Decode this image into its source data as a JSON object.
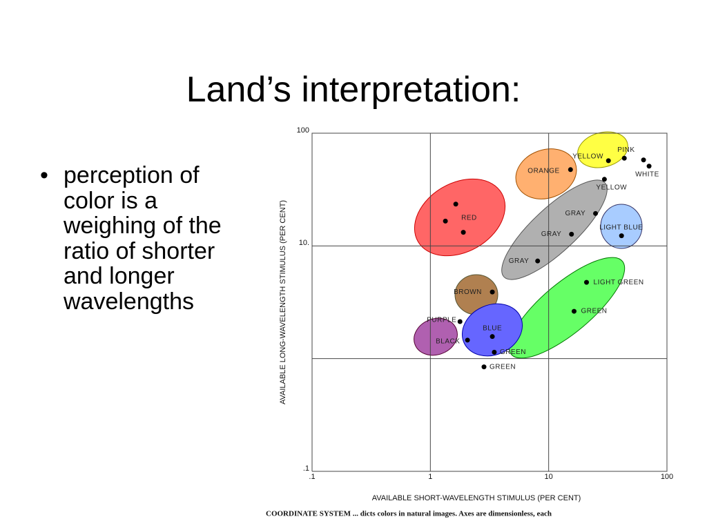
{
  "slide": {
    "title": "Land’s interpretation:",
    "bullets": [
      "perception of color is a weighing of the ratio of shorter and longer wavelengths"
    ]
  },
  "chart_data": {
    "type": "scatter",
    "xlabel": "AVAILABLE SHORT-WAVELENGTH STIMULUS (PER CENT)",
    "ylabel": "AVAILABLE LONG-WAVELENGTH STIMULUS (PER CENT)",
    "caption": "COORDINATE SYSTEM ... dicts colors in natural images. Axes are dimensionless, each",
    "log_x": true,
    "log_y": true,
    "grid": true,
    "color": "#000000",
    "xlim": [
      0.1,
      100
    ],
    "ylim": [
      0.1,
      100
    ],
    "xticks": [
      {
        "value": 0.1,
        "label": ".1"
      },
      1,
      10,
      100
    ],
    "yticks": [
      {
        "value": 0.1,
        "label": ".1"
      },
      {
        "value": 1,
        "label": null
      },
      {
        "value": 10,
        "label": "10."
      },
      100
    ],
    "x": [
      1.64,
      1.34,
      1.9,
      15.3,
      32,
      43.6,
      63.4,
      70.6,
      29.6,
      24.9,
      15.6,
      8.07,
      41.3,
      20.9,
      16.4,
      3.34,
      1.78,
      3.34,
      2.06,
      3.47,
      2.84
    ],
    "values": [
      23.5,
      16.6,
      13.2,
      47.5,
      57,
      60,
      57.9,
      51,
      39,
      19.4,
      12.7,
      7.35,
      12.3,
      4.75,
      2.63,
      3.9,
      2.13,
      1.57,
      1.46,
      1.14,
      0.845
    ],
    "point_labels": [
      "RED",
      null,
      null,
      "ORANGE",
      "YELLOW",
      "PINK",
      null,
      "WHITE",
      "YELLOW",
      "GRAY",
      "GRAY",
      "GRAY",
      "LIGHT BLUE",
      "LIGHT GREEN",
      "GREEN",
      "BROWN",
      "PURPLE",
      "BLUE",
      "BLACK",
      "GREEN",
      "GREEN"
    ]
  }
}
